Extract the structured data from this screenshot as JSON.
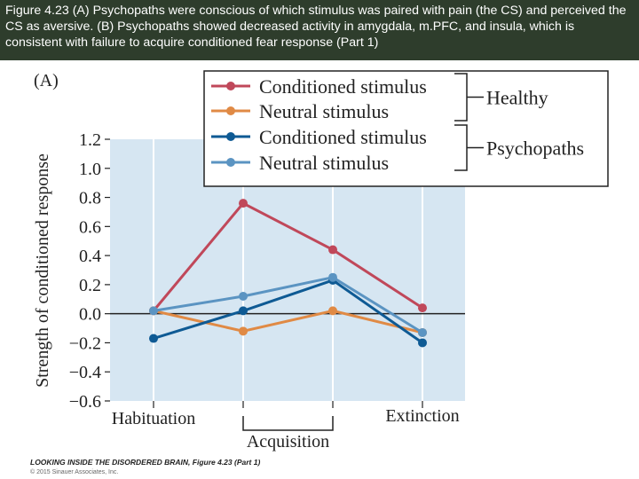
{
  "caption": "Figure 4.23 (A) Psychopaths were conscious of which stimulus was paired with pain (the CS) and perceived the CS as aversive. (B) Psychopaths showed decreased activity in amygdala, m.PFC, and insula, which is consistent with failure to acquire conditioned fear response (Part 1)",
  "credit": {
    "line1": "LOOKING INSIDE THE DISORDERED BRAIN, Figure 4.23 (Part 1)",
    "line2": "© 2015 Sinauer Associates, Inc."
  },
  "chart_data": {
    "type": "line",
    "panel_label": "(A)",
    "ylabel": "Strength of conditioned response",
    "ylim": [
      -0.6,
      1.2
    ],
    "yticks": [
      1.2,
      1.0,
      0.8,
      0.6,
      0.4,
      0.2,
      0.0,
      -0.2,
      -0.4,
      -0.6
    ],
    "ytick_labels": [
      "1.2",
      "1.0",
      "0.8",
      "0.6",
      "0.4",
      "0.2",
      "0.0",
      "−0.2",
      "−0.4",
      "−0.6"
    ],
    "x_labels": [
      "Habituation",
      "Extinction"
    ],
    "x_group_label": "Acquisition",
    "series": [
      {
        "name": "Conditioned stimulus",
        "group": "Healthy",
        "color": "#c0485a",
        "values": [
          0.02,
          0.76,
          0.44,
          0.04
        ]
      },
      {
        "name": "Neutral stimulus",
        "group": "Healthy",
        "color": "#e08a45",
        "values": [
          0.02,
          -0.12,
          0.02,
          -0.13
        ]
      },
      {
        "name": "Conditioned stimulus",
        "group": "Psychopaths",
        "color": "#0e5a94",
        "values": [
          -0.17,
          0.02,
          0.23,
          -0.2
        ]
      },
      {
        "name": "Neutral stimulus",
        "group": "Psychopaths",
        "color": "#5b94c2",
        "values": [
          0.02,
          0.12,
          0.25,
          -0.13
        ]
      }
    ],
    "legend_groups": [
      "Healthy",
      "Psychopaths"
    ]
  }
}
